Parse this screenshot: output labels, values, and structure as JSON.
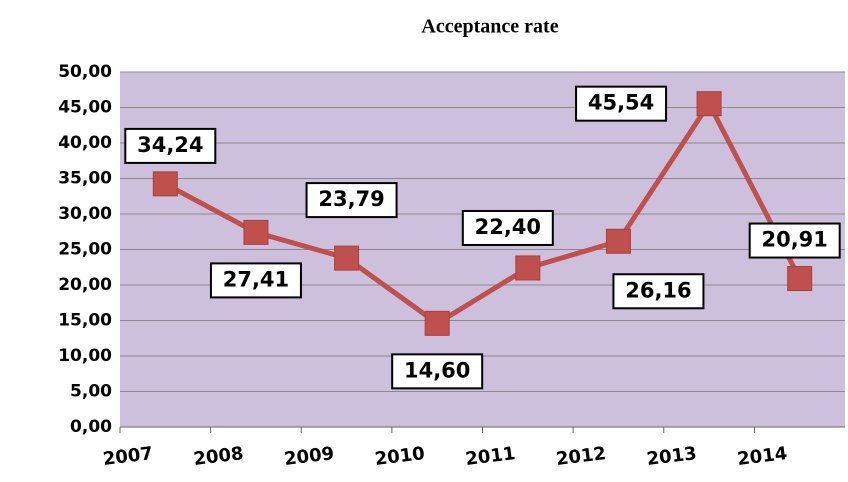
{
  "chart_data": {
    "type": "line",
    "title": "Acceptance rate",
    "categories": [
      "2007",
      "2008",
      "2009",
      "2010",
      "2011",
      "2012",
      "2013",
      "2014"
    ],
    "series": [
      {
        "color": "#c0504d",
        "values": [
          34.24,
          27.41,
          23.79,
          14.6,
          22.4,
          26.16,
          45.54,
          20.91
        ],
        "value_labels": [
          "34,24",
          "27,41",
          "23,79",
          "14,60",
          "22,40",
          "26,16",
          "45,54",
          "20,91"
        ]
      }
    ],
    "ylim": [
      0,
      50
    ],
    "yticks": [
      {
        "value": 0,
        "label": "0,00"
      },
      {
        "value": 5,
        "label": "5,00"
      },
      {
        "value": 10,
        "label": "10,00"
      },
      {
        "value": 15,
        "label": "15,00"
      },
      {
        "value": 20,
        "label": "20,00"
      },
      {
        "value": 25,
        "label": "25,00"
      },
      {
        "value": 30,
        "label": "30,00"
      },
      {
        "value": 35,
        "label": "35,00"
      },
      {
        "value": 40,
        "label": "40,00"
      },
      {
        "value": 45,
        "label": "45,00"
      },
      {
        "value": 50,
        "label": "50,00"
      }
    ],
    "grid": true,
    "plot_background": "#cdc0dc"
  }
}
